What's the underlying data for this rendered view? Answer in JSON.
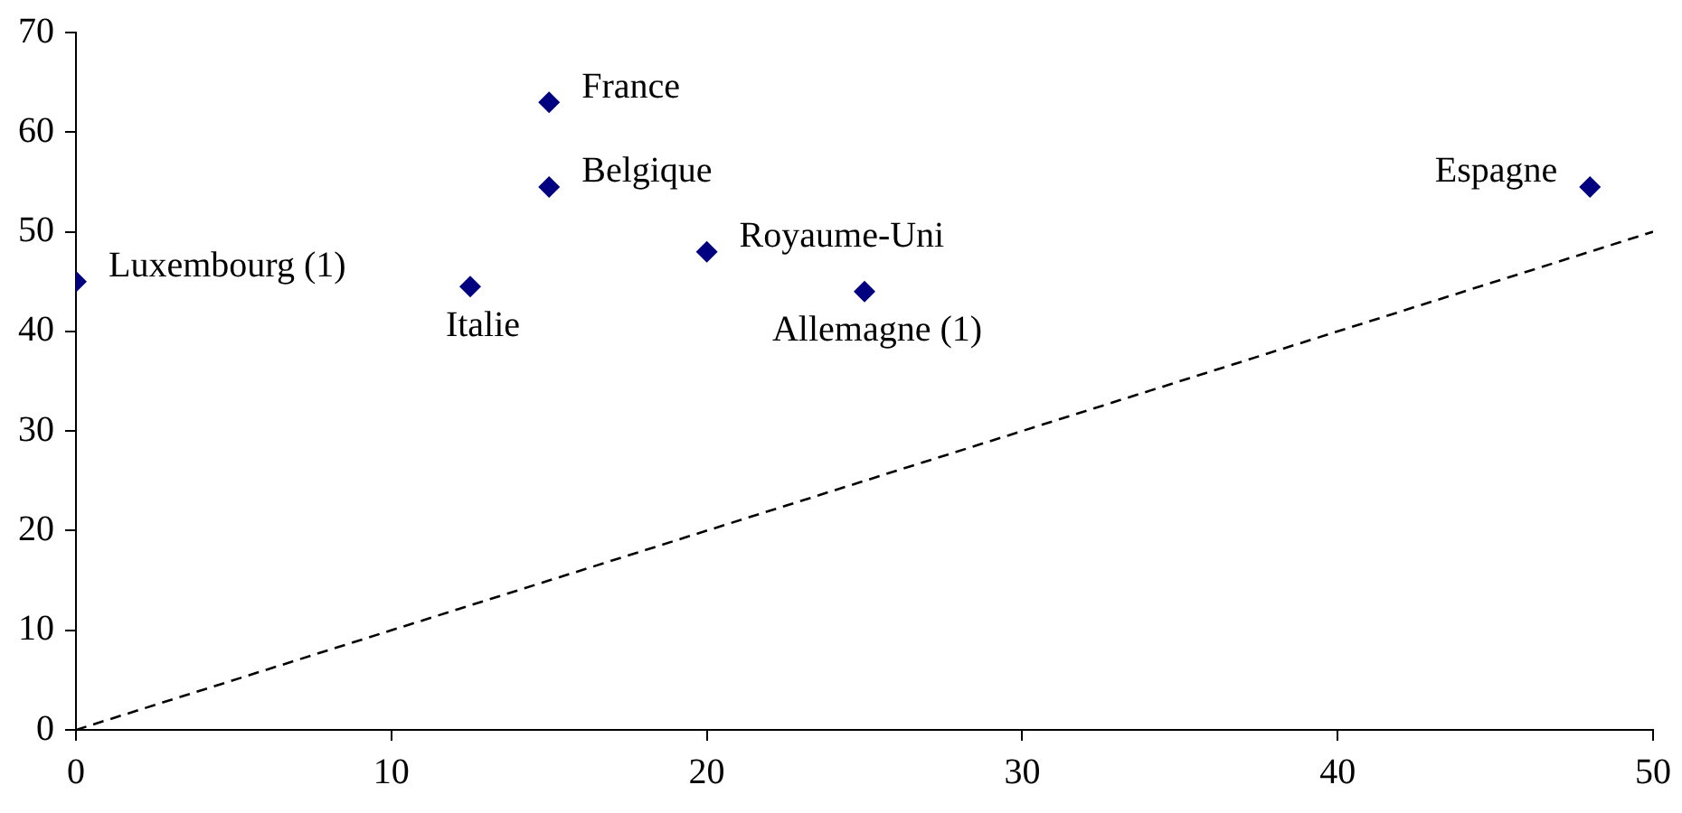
{
  "chart_data": {
    "type": "scatter",
    "xlim": [
      0,
      50
    ],
    "ylim": [
      0,
      70
    ],
    "xticks": [
      0,
      10,
      20,
      30,
      40,
      50
    ],
    "yticks": [
      0,
      10,
      20,
      30,
      40,
      50,
      60,
      70
    ],
    "grid": false,
    "legend": false,
    "marker": "diamond",
    "series": [
      {
        "name": "Luxembourg (1)",
        "color": "#000080",
        "x": [
          0
        ],
        "values": [
          45
        ]
      },
      {
        "name": "Italie",
        "color": "#000080",
        "x": [
          12.5
        ],
        "values": [
          44.5
        ]
      },
      {
        "name": "France",
        "color": "#000080",
        "x": [
          15
        ],
        "values": [
          63
        ]
      },
      {
        "name": "Belgique",
        "color": "#000080",
        "x": [
          15
        ],
        "values": [
          54.5
        ]
      },
      {
        "name": "Royaume-Uni",
        "color": "#000080",
        "x": [
          20
        ],
        "values": [
          48
        ]
      },
      {
        "name": "Allemagne (1)",
        "color": "#000080",
        "x": [
          25
        ],
        "values": [
          44
        ]
      },
      {
        "name": "Espagne",
        "color": "#000080",
        "x": [
          48
        ],
        "values": [
          54.5
        ]
      },
      {
        "type": "line",
        "color": "#000000",
        "x": [
          0,
          50
        ],
        "values": [
          0,
          50
        ],
        "marker": "none",
        "line_style": "dashed"
      }
    ]
  }
}
